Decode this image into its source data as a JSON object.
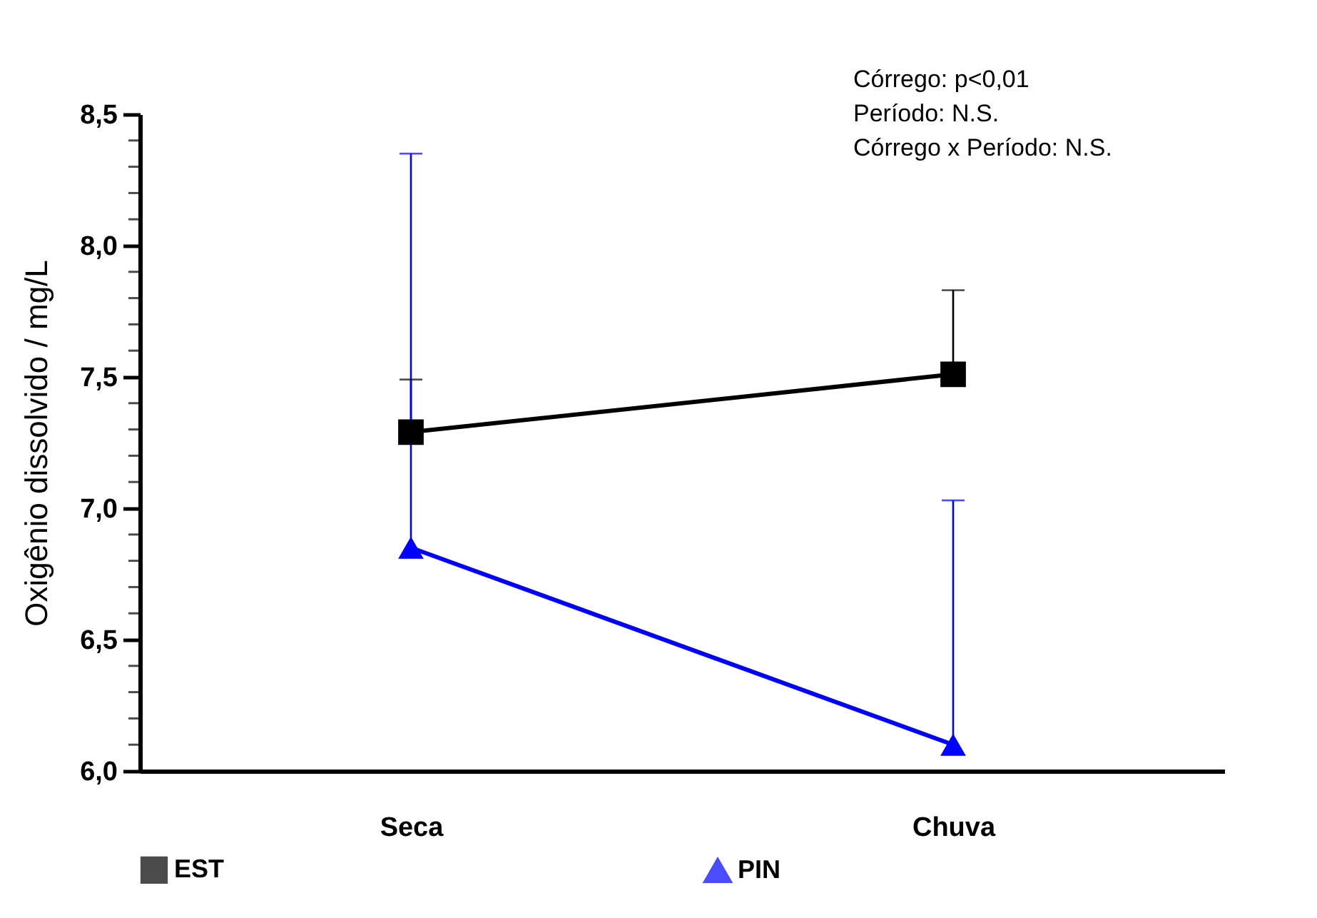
{
  "chart_data": {
    "type": "line",
    "ylabel": "Oxigênio dissolvido / mg/L",
    "categories": [
      "Seca",
      "Chuva"
    ],
    "series": [
      {
        "name": "EST",
        "color": "#000000",
        "marker": "square",
        "values": [
          7.29,
          7.51
        ],
        "errors": [
          [
            7.29,
            7.49
          ],
          [
            7.51,
            7.83
          ]
        ]
      },
      {
        "name": "PIN",
        "color": "#0000ff",
        "marker": "triangle",
        "values": [
          6.85,
          6.1
        ],
        "errors": [
          [
            6.85,
            8.35
          ],
          [
            6.1,
            7.03
          ]
        ]
      }
    ],
    "ylim": [
      6.0,
      8.5
    ],
    "yticks": [
      "6,0",
      {
        "value": 6.1,
        "label": null
      },
      {
        "value": 6.2,
        "label": null
      },
      {
        "value": 6.3,
        "label": null
      },
      {
        "value": 6.4,
        "label": null
      },
      {
        "value": 6.5,
        "label": "6,5"
      },
      {
        "value": 6.6,
        "label": null
      },
      {
        "value": 6.7,
        "label": null
      },
      {
        "value": 6.8,
        "label": null
      },
      {
        "value": 6.9,
        "label": null
      },
      {
        "value": 7.0,
        "label": "7,0"
      },
      {
        "value": 7.1,
        "label": null
      },
      {
        "value": 7.2,
        "label": null
      },
      {
        "value": 7.3,
        "label": null
      },
      {
        "value": 7.4,
        "label": null
      },
      {
        "value": 7.5,
        "label": "7,5"
      },
      {
        "value": 7.6,
        "label": null
      },
      {
        "value": 7.7,
        "label": null
      },
      {
        "value": 7.8,
        "label": null
      },
      {
        "value": 7.9,
        "label": null
      },
      {
        "value": 8.0,
        "label": "8,0"
      },
      {
        "value": 8.1,
        "label": null
      },
      {
        "value": 8.2,
        "label": null
      },
      {
        "value": 8.3,
        "label": null
      },
      {
        "value": 8.4,
        "label": null
      },
      {
        "value": 8.5,
        "label": "8,5"
      }
    ],
    "annotations": [
      "Córrego: p<0,01",
      "Período:  N.S.",
      "Córrego x Período: N.S."
    ],
    "grid": false,
    "legend": "bottom"
  }
}
